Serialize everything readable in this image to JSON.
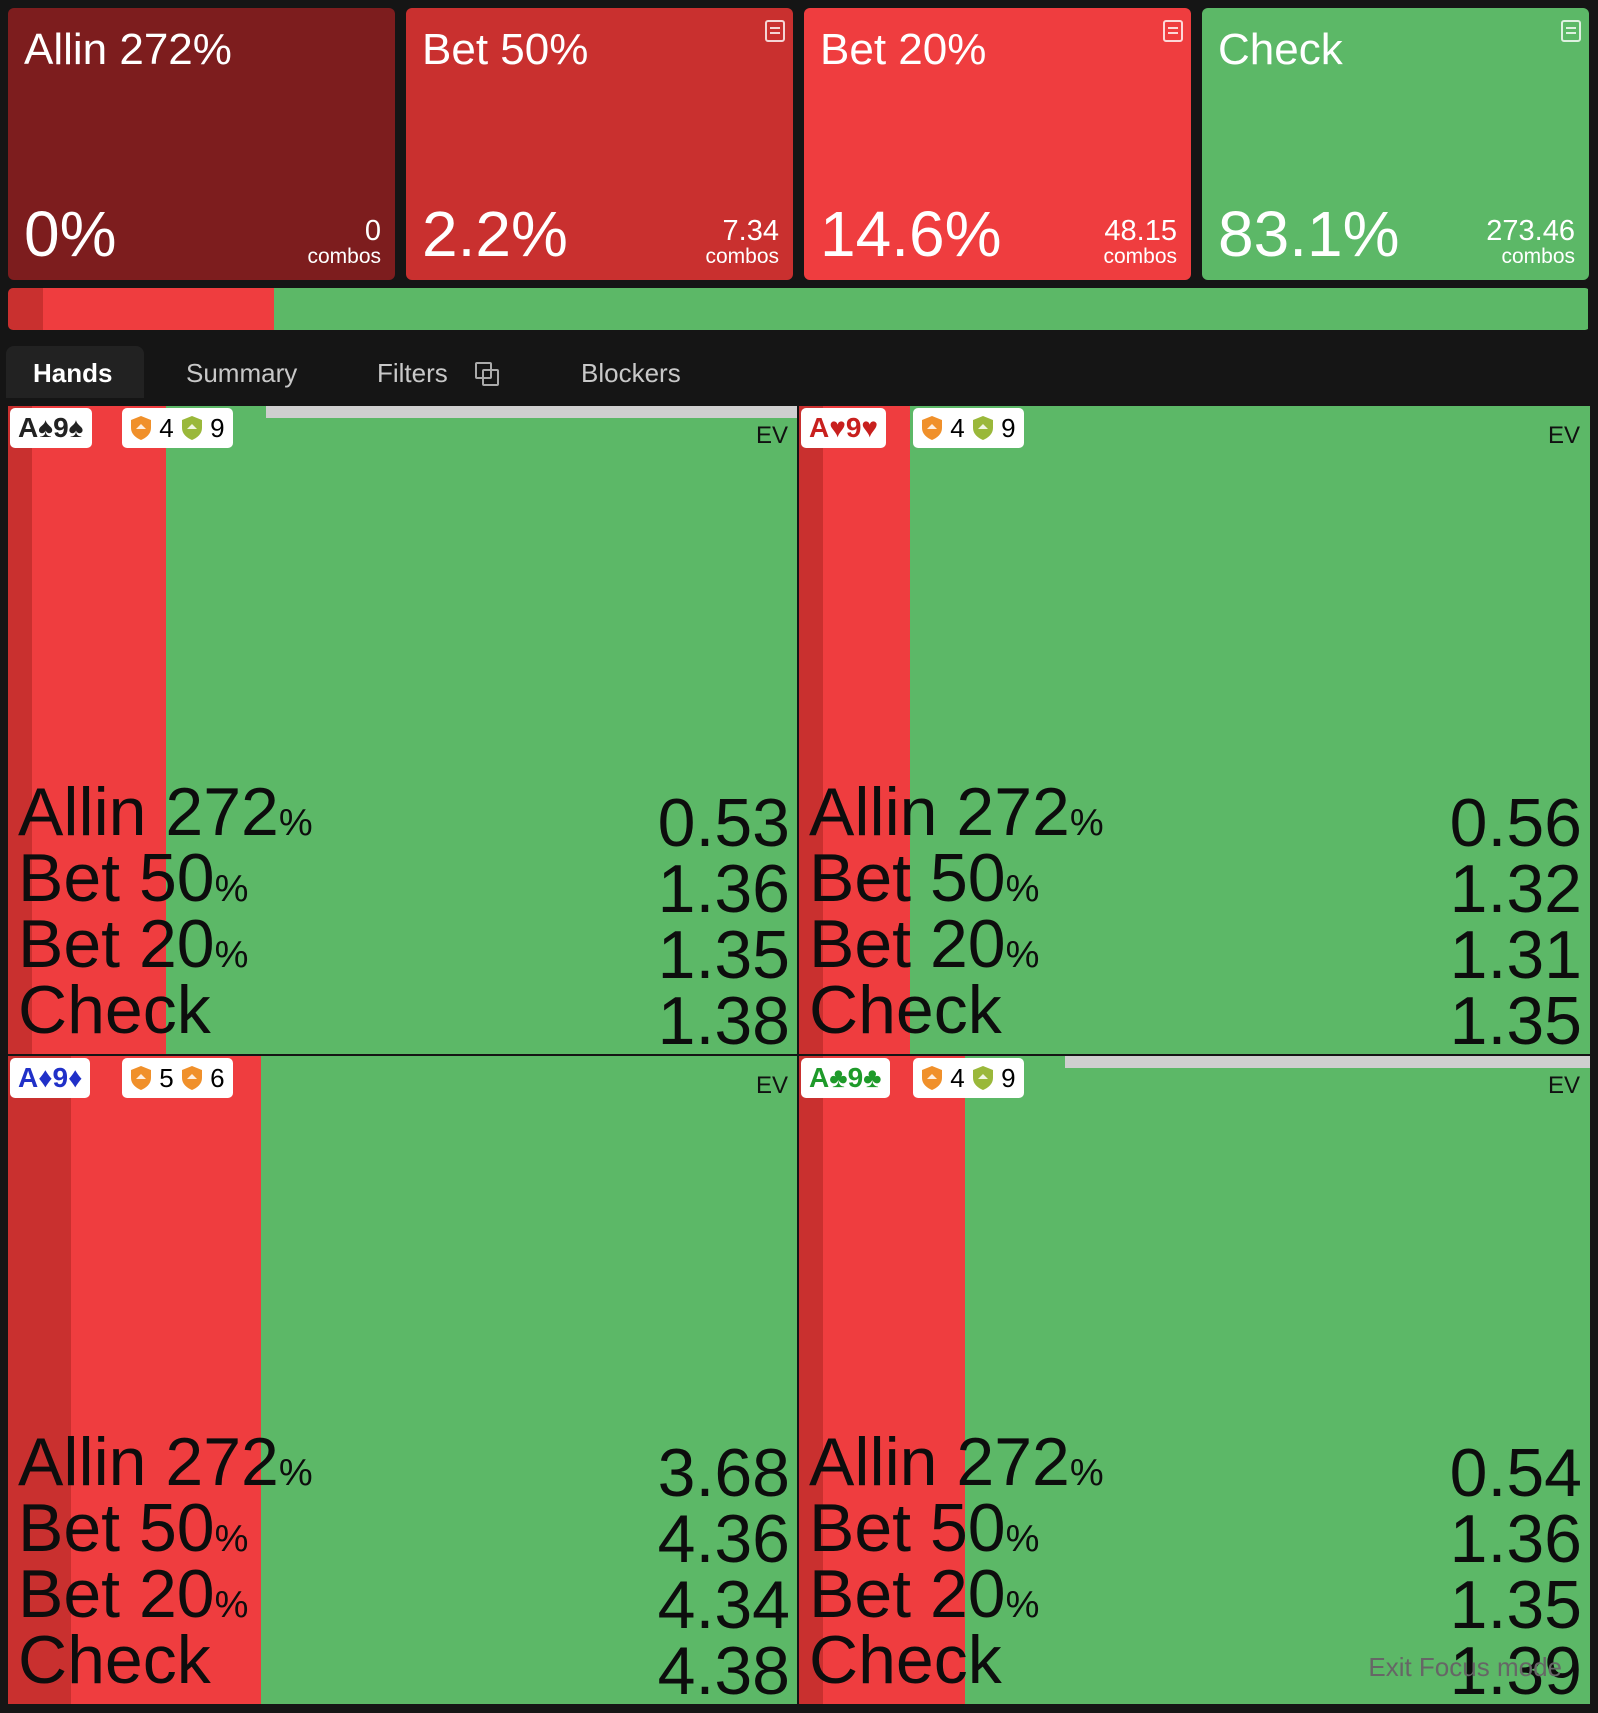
{
  "actions": [
    {
      "title": "Allin 272%",
      "pct": "0%",
      "combos": "0",
      "combos_unit": "combos",
      "color": "#7d1d1e",
      "note": false
    },
    {
      "title": "Bet 50%",
      "pct": "2.2%",
      "combos": "7.34",
      "combos_unit": "combos",
      "color": "#c9302f",
      "note": true
    },
    {
      "title": "Bet 20%",
      "pct": "14.6%",
      "combos": "48.15",
      "combos_unit": "combos",
      "color": "#ef3d3f",
      "note": true
    },
    {
      "title": "Check",
      "pct": "83.1%",
      "combos": "273.46",
      "combos_unit": "combos",
      "color": "#5cb867",
      "note": true
    }
  ],
  "freq_bar": [
    {
      "action": "Allin 272%",
      "frac": 0.0,
      "color": "#7d1d1e"
    },
    {
      "action": "Bet 50%",
      "frac": 0.022,
      "color": "#c9302f"
    },
    {
      "action": "Bet 20%",
      "frac": 0.146,
      "color": "#ef3d3f"
    },
    {
      "action": "Check",
      "frac": 0.831,
      "color": "#5cb867"
    }
  ],
  "tabs": [
    {
      "label": "Hands",
      "active": true
    },
    {
      "label": "Summary",
      "active": false
    },
    {
      "label": "Filters",
      "active": false
    },
    {
      "label": "Blockers",
      "active": false
    }
  ],
  "ev_label": "EV",
  "hands": [
    {
      "cards": "A♠9♠",
      "card_color": "#222222",
      "eq1": "4",
      "eq2": "9",
      "shield2_color": "#9ab83a",
      "top_line": true,
      "mix": [
        0.0,
        0.03,
        0.17,
        0.8
      ],
      "rows": [
        {
          "label": "Allin 272",
          "pc": "%",
          "ev": "0.53"
        },
        {
          "label": "Bet 50",
          "pc": "%",
          "ev": "1.36"
        },
        {
          "label": "Bet 20",
          "pc": "%",
          "ev": "1.35"
        },
        {
          "label": "Check",
          "pc": "",
          "ev": "1.38"
        }
      ]
    },
    {
      "cards": "A♥9♥",
      "card_color": "#c8201e",
      "eq1": "4",
      "eq2": "9",
      "shield2_color": "#9ab83a",
      "top_line": false,
      "mix": [
        0.0,
        0.03,
        0.11,
        0.86
      ],
      "rows": [
        {
          "label": "Allin 272",
          "pc": "%",
          "ev": "0.56"
        },
        {
          "label": "Bet 50",
          "pc": "%",
          "ev": "1.32"
        },
        {
          "label": "Bet 20",
          "pc": "%",
          "ev": "1.31"
        },
        {
          "label": "Check",
          "pc": "",
          "ev": "1.35"
        }
      ]
    },
    {
      "cards": "A♦9♦",
      "card_color": "#2030c8",
      "eq1": "5",
      "eq2": "6",
      "shield2_color": "#f0902a",
      "top_line": false,
      "mix": [
        0.0,
        0.08,
        0.24,
        0.68
      ],
      "rows": [
        {
          "label": "Allin 272",
          "pc": "%",
          "ev": "3.68"
        },
        {
          "label": "Bet 50",
          "pc": "%",
          "ev": "4.36"
        },
        {
          "label": "Bet 20",
          "pc": "%",
          "ev": "4.34"
        },
        {
          "label": "Check",
          "pc": "",
          "ev": "4.38"
        }
      ]
    },
    {
      "cards": "A♣9♣",
      "card_color": "#1e9a2a",
      "eq1": "4",
      "eq2": "9",
      "shield2_color": "#9ab83a",
      "top_line": true,
      "mix": [
        0.0,
        0.03,
        0.18,
        0.79
      ],
      "rows": [
        {
          "label": "Allin 272",
          "pc": "%",
          "ev": "0.54"
        },
        {
          "label": "Bet 50",
          "pc": "%",
          "ev": "1.36"
        },
        {
          "label": "Bet 20",
          "pc": "%",
          "ev": "1.35"
        },
        {
          "label": "Check",
          "pc": "",
          "ev": "1.39"
        }
      ]
    }
  ],
  "exit_focus": "Exit Focus mode"
}
